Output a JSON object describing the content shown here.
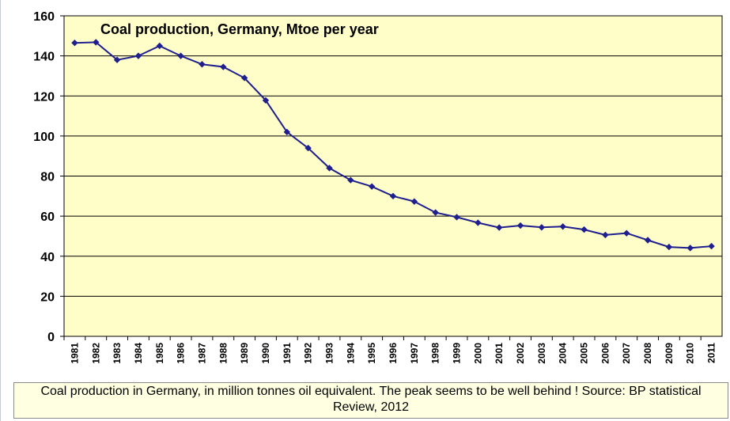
{
  "chart_data": {
    "type": "line",
    "title": "Coal production, Germany, Mtoe per year",
    "xlabel": "",
    "ylabel": "",
    "ylim": [
      0,
      160
    ],
    "yticks": [
      0,
      20,
      40,
      60,
      80,
      100,
      120,
      140,
      160
    ],
    "grid": true,
    "categories": [
      "1981",
      "1982",
      "1983",
      "1984",
      "1985",
      "1986",
      "1987",
      "1988",
      "1989",
      "1990",
      "1991",
      "1992",
      "1993",
      "1994",
      "1995",
      "1996",
      "1997",
      "1998",
      "1999",
      "2000",
      "2001",
      "2002",
      "2003",
      "2004",
      "2005",
      "2006",
      "2007",
      "2008",
      "2009",
      "2010",
      "2011"
    ],
    "series": [
      {
        "name": "Coal production",
        "values": [
          146.5,
          146.8,
          138.0,
          140.0,
          145.0,
          140.0,
          135.8,
          134.5,
          129.0,
          117.8,
          102.0,
          94.0,
          84.0,
          78.0,
          74.8,
          70.0,
          67.3,
          61.8,
          59.5,
          56.7,
          54.3,
          55.3,
          54.4,
          54.8,
          53.3,
          50.6,
          51.5,
          48.0,
          44.6,
          44.1,
          45.0
        ],
        "color": "#1f1f8f"
      }
    ],
    "colors": {
      "plot_background": "#fffdc8",
      "gridline": "#000000",
      "line": "#1f1f8f"
    }
  },
  "caption": {
    "text": "Coal production in Germany, in million tonnes oil equivalent. The peak seems to be well behind ! Source: BP statistical Review, 2012"
  }
}
